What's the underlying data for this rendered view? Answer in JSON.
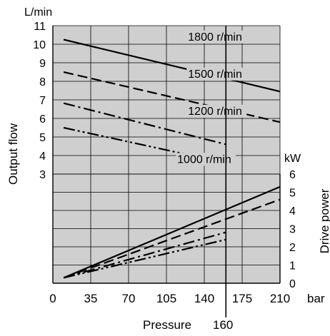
{
  "chart_data": {
    "type": "line",
    "x_label": "Pressure",
    "x_ticks": [
      0,
      35,
      70,
      105,
      140,
      175,
      210
    ],
    "x_tick_labels": [
      "0",
      "35",
      "70",
      "105",
      "140",
      "175",
      "210"
    ],
    "x_unit": "bar",
    "x_range": [
      0,
      210
    ],
    "marker_x": 160,
    "marker_label": "160",
    "grid": true,
    "left_axis": {
      "label": "Output flow",
      "unit": "L/min",
      "ticks": [
        3,
        4,
        5,
        6,
        7,
        8,
        9,
        10,
        11
      ],
      "range": [
        3,
        11
      ]
    },
    "right_axis": {
      "label": "Drive power",
      "unit": "kW",
      "ticks": [
        0,
        1,
        2,
        3,
        4,
        5,
        6
      ],
      "range": [
        0,
        6
      ]
    },
    "flow_series": [
      {
        "name": "1800 r/min",
        "dash": "solid",
        "x": [
          10,
          210
        ],
        "y": [
          10.25,
          7.45
        ]
      },
      {
        "name": "1500 r/min",
        "dash": "dash",
        "x": [
          10,
          210
        ],
        "y": [
          8.5,
          5.8
        ]
      },
      {
        "name": "1200 r/min",
        "dash": "dash-dot",
        "x": [
          10,
          160
        ],
        "y": [
          6.82,
          4.6
        ]
      },
      {
        "name": "1000 r/min",
        "dash": "dash-dot-dot",
        "x": [
          10,
          160
        ],
        "y": [
          5.5,
          3.6
        ]
      }
    ],
    "flow_label_positions": {
      "1800 r/min": [
        125,
        10.2
      ],
      "1500 r/min": [
        125,
        8.2
      ],
      "1200 r/min": [
        125,
        6.2
      ],
      "1000 r/min": [
        115,
        3.6
      ]
    },
    "power_series": [
      {
        "name": "1800 r/min",
        "dash": "solid",
        "x": [
          10,
          210
        ],
        "y": [
          0.3,
          5.3
        ]
      },
      {
        "name": "1500 r/min",
        "dash": "dash",
        "x": [
          10,
          210
        ],
        "y": [
          0.3,
          4.6
        ]
      },
      {
        "name": "1200 r/min",
        "dash": "dash-dot",
        "x": [
          10,
          160
        ],
        "y": [
          0.3,
          2.8
        ]
      },
      {
        "name": "1000 r/min",
        "dash": "dash-dot-dot",
        "x": [
          10,
          160
        ],
        "y": [
          0.3,
          2.4
        ]
      }
    ]
  }
}
